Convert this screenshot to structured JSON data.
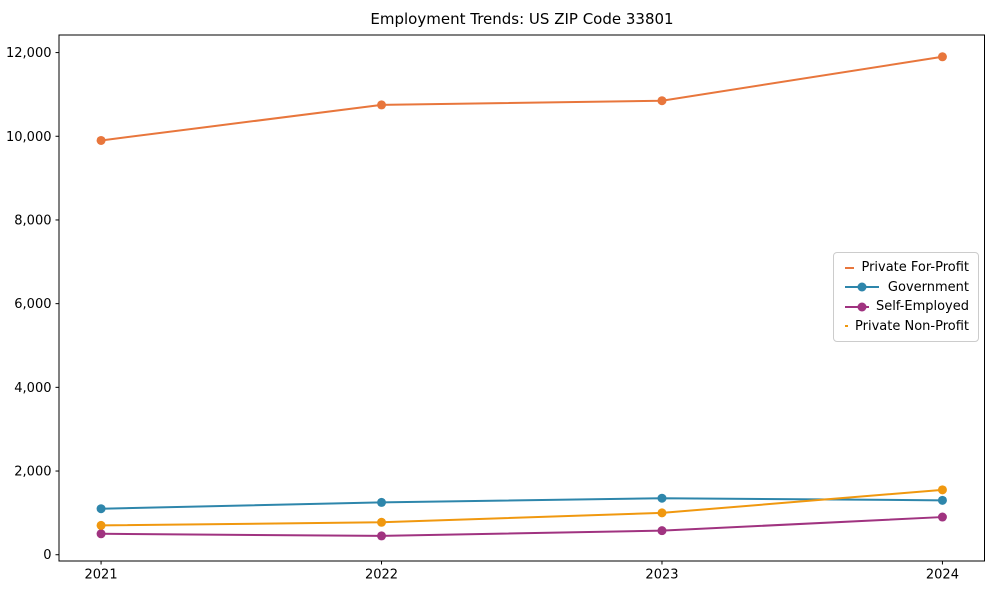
{
  "chart_data": {
    "type": "line",
    "title": "Employment Trends: US ZIP Code 33801",
    "x": [
      2021,
      2022,
      2023,
      2024
    ],
    "xtick_labels": [
      "2021",
      "2022",
      "2023",
      "2024"
    ],
    "ytick_values": [
      0,
      2000,
      4000,
      6000,
      8000,
      10000,
      12000
    ],
    "ytick_labels": [
      "0",
      "2,000",
      "4,000",
      "6,000",
      "8,000",
      "10,000",
      "12,000"
    ],
    "xlim": [
      2020.85,
      2024.15
    ],
    "ylim": [
      -150,
      12420
    ],
    "grid": false,
    "legend_position": "center right",
    "series": [
      {
        "name": "Private For-Profit",
        "color": "#E8763C",
        "values": [
          9900,
          10750,
          10850,
          11900
        ]
      },
      {
        "name": "Government",
        "color": "#2E86AB",
        "values": [
          1100,
          1250,
          1350,
          1300
        ]
      },
      {
        "name": "Self-Employed",
        "color": "#A03380",
        "values": [
          500,
          450,
          575,
          900
        ]
      },
      {
        "name": "Private Non-Profit",
        "color": "#F0980F",
        "values": [
          700,
          775,
          1000,
          1550
        ]
      }
    ]
  }
}
